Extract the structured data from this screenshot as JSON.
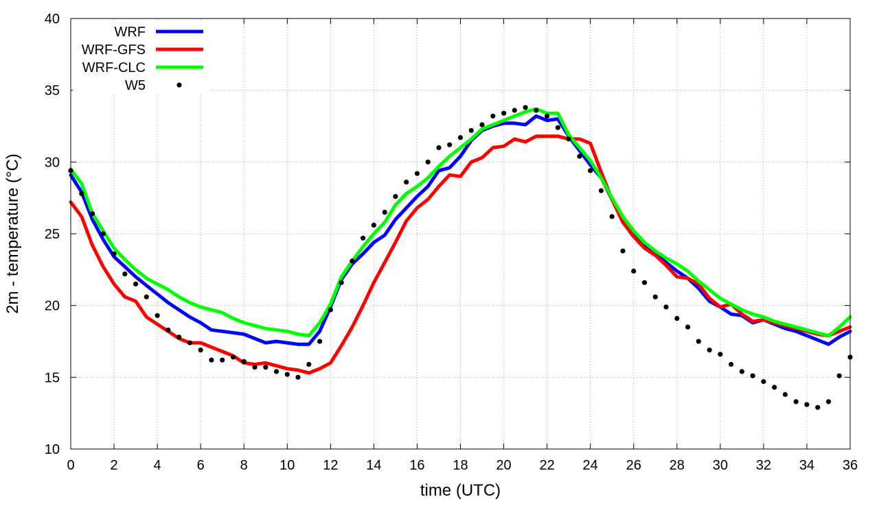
{
  "chart_data": {
    "type": "line",
    "title": "",
    "xlabel": "time (UTC)",
    "ylabel": "2m - temperature (°C)",
    "xlim": [
      0,
      36
    ],
    "ylim": [
      10,
      40
    ],
    "xticks": [
      0,
      2,
      4,
      6,
      8,
      10,
      12,
      14,
      16,
      18,
      20,
      22,
      24,
      26,
      28,
      30,
      32,
      34,
      36
    ],
    "yticks": [
      10,
      15,
      20,
      25,
      30,
      35,
      40
    ],
    "grid": true,
    "legend_position": "top-left",
    "series": [
      {
        "name": "WRF",
        "style": "line",
        "color": "#0000ff",
        "x": [
          0,
          0.5,
          1,
          1.5,
          2,
          2.5,
          3,
          3.5,
          4,
          4.5,
          5,
          5.5,
          6,
          6.5,
          7,
          7.5,
          8,
          8.5,
          9,
          9.5,
          10,
          10.5,
          11,
          11.5,
          12,
          12.5,
          13,
          13.5,
          14,
          14.5,
          15,
          15.5,
          16,
          16.5,
          17,
          17.5,
          18,
          18.5,
          19,
          19.5,
          20,
          20.5,
          21,
          21.5,
          22,
          22.5,
          23,
          23.5,
          24,
          24.5,
          25,
          25.5,
          26,
          26.5,
          27,
          27.5,
          28,
          28.5,
          29,
          29.5,
          30,
          30.5,
          31,
          31.5,
          32,
          32.5,
          33,
          33.5,
          34,
          34.5,
          35,
          35.5,
          36
        ],
        "y": [
          29.1,
          27.9,
          26.0,
          24.6,
          23.4,
          22.7,
          22.0,
          21.4,
          20.8,
          20.2,
          19.7,
          19.2,
          18.8,
          18.3,
          18.2,
          18.1,
          18.0,
          17.7,
          17.4,
          17.5,
          17.4,
          17.3,
          17.3,
          18.2,
          19.9,
          21.8,
          22.9,
          23.6,
          24.4,
          24.9,
          26.0,
          26.8,
          27.6,
          28.3,
          29.4,
          29.6,
          30.4,
          31.5,
          32.2,
          32.5,
          32.7,
          32.7,
          32.6,
          33.2,
          32.9,
          33.0,
          31.8,
          30.8,
          29.8,
          28.9,
          27.4,
          25.9,
          24.9,
          24.2,
          23.6,
          23.0,
          22.4,
          21.9,
          21.2,
          20.3,
          19.9,
          19.4,
          19.3,
          18.8,
          19.0,
          18.7,
          18.4,
          18.2,
          17.9,
          17.6,
          17.3,
          17.8,
          18.2
        ]
      },
      {
        "name": "WRF-GFS",
        "style": "line",
        "color": "#ff0000",
        "x": [
          0,
          0.5,
          1,
          1.5,
          2,
          2.5,
          3,
          3.5,
          4,
          4.5,
          5,
          5.5,
          6,
          6.5,
          7,
          7.5,
          8,
          8.5,
          9,
          9.5,
          10,
          10.5,
          11,
          11.5,
          12,
          12.5,
          13,
          13.5,
          14,
          14.5,
          15,
          15.5,
          16,
          16.5,
          17,
          17.5,
          18,
          18.5,
          19,
          19.5,
          20,
          20.5,
          21,
          21.5,
          22,
          22.5,
          23,
          23.5,
          24,
          24.5,
          25,
          25.5,
          26,
          26.5,
          27,
          27.5,
          28,
          28.5,
          29,
          29.5,
          30,
          30.5,
          31,
          31.5,
          32,
          32.5,
          33,
          33.5,
          34,
          34.5,
          35,
          35.5,
          36
        ],
        "y": [
          27.2,
          26.2,
          24.2,
          22.7,
          21.5,
          20.6,
          20.3,
          19.2,
          18.7,
          18.2,
          17.7,
          17.4,
          17.4,
          17.1,
          16.8,
          16.5,
          16.0,
          15.9,
          16.0,
          15.8,
          15.6,
          15.5,
          15.3,
          15.6,
          16.0,
          17.2,
          18.5,
          20.0,
          21.6,
          23.0,
          24.4,
          25.9,
          26.8,
          27.4,
          28.3,
          29.1,
          29.0,
          30.0,
          30.3,
          31.0,
          31.1,
          31.6,
          31.4,
          31.8,
          31.8,
          31.8,
          31.6,
          31.6,
          31.3,
          29.3,
          27.4,
          25.8,
          24.8,
          24.0,
          23.5,
          22.8,
          22.0,
          21.9,
          21.5,
          20.5,
          19.9,
          20.1,
          19.4,
          18.9,
          19.0,
          18.8,
          18.6,
          18.4,
          18.2,
          18.0,
          17.9,
          18.2,
          18.5
        ]
      },
      {
        "name": "WRF-CLC",
        "style": "line",
        "color": "#00ff00",
        "x": [
          0,
          0.5,
          1,
          1.5,
          2,
          2.5,
          3,
          3.5,
          4,
          4.5,
          5,
          5.5,
          6,
          6.5,
          7,
          7.5,
          8,
          8.5,
          9,
          9.5,
          10,
          10.5,
          11,
          11.5,
          12,
          12.5,
          13,
          13.5,
          14,
          14.5,
          15,
          15.5,
          16,
          16.5,
          17,
          17.5,
          18,
          18.5,
          19,
          19.5,
          20,
          20.5,
          21,
          21.5,
          22,
          22.5,
          23,
          23.5,
          24,
          24.5,
          25,
          25.5,
          26,
          26.5,
          27,
          27.5,
          28,
          28.5,
          29,
          29.5,
          30,
          30.5,
          31,
          31.5,
          32,
          32.5,
          33,
          33.5,
          34,
          34.5,
          35,
          35.5,
          36
        ],
        "y": [
          29.5,
          28.5,
          26.4,
          25.2,
          24.0,
          23.2,
          22.5,
          21.9,
          21.5,
          21.1,
          20.6,
          20.2,
          19.9,
          19.7,
          19.5,
          19.1,
          18.8,
          18.6,
          18.4,
          18.3,
          18.2,
          18.0,
          17.9,
          18.8,
          20.1,
          22.0,
          23.1,
          24.1,
          25.0,
          25.8,
          27.0,
          27.8,
          28.3,
          28.9,
          29.7,
          30.4,
          31.0,
          31.6,
          32.3,
          32.6,
          32.9,
          33.2,
          33.5,
          33.7,
          33.4,
          33.4,
          31.9,
          31.0,
          30.1,
          28.9,
          27.5,
          26.2,
          25.2,
          24.4,
          23.8,
          23.3,
          22.9,
          22.4,
          21.7,
          21.1,
          20.5,
          20.1,
          19.7,
          19.4,
          19.2,
          18.9,
          18.7,
          18.5,
          18.3,
          18.1,
          17.9,
          18.5,
          19.2
        ]
      },
      {
        "name": "W5",
        "style": "points",
        "color": "#000000",
        "x": [
          0,
          0.5,
          1,
          1.5,
          2,
          2.5,
          3,
          3.5,
          4,
          4.5,
          5,
          5.5,
          6,
          6.5,
          7,
          7.5,
          8,
          8.5,
          9,
          9.5,
          10,
          10.5,
          11,
          11.5,
          12,
          12.5,
          13,
          13.5,
          14,
          14.5,
          15,
          15.5,
          16,
          16.5,
          17,
          17.5,
          18,
          18.5,
          19,
          19.5,
          20,
          20.5,
          21,
          21.5,
          22,
          22.5,
          23,
          23.5,
          24,
          24.5,
          25,
          25.5,
          26,
          26.5,
          27,
          27.5,
          28,
          28.5,
          29,
          29.5,
          30,
          30.5,
          31,
          31.5,
          32,
          32.5,
          33,
          33.5,
          34,
          34.5,
          35,
          35.5,
          36
        ],
        "y": [
          29.4,
          27.8,
          26.4,
          25.0,
          23.6,
          22.2,
          21.5,
          20.6,
          19.3,
          18.3,
          17.8,
          17.4,
          16.9,
          16.2,
          16.2,
          16.4,
          16.1,
          15.7,
          15.7,
          15.4,
          15.2,
          15.0,
          15.9,
          17.5,
          19.7,
          21.6,
          23.1,
          24.7,
          25.6,
          26.5,
          27.6,
          28.6,
          29.2,
          30.0,
          31.0,
          31.2,
          31.7,
          32.2,
          32.6,
          33.2,
          33.4,
          33.6,
          33.8,
          33.6,
          33.2,
          32.4,
          31.6,
          30.4,
          29.4,
          28.0,
          26.2,
          23.8,
          22.4,
          21.6,
          20.6,
          19.9,
          19.1,
          18.5,
          17.5,
          16.9,
          16.6,
          15.9,
          15.4,
          15.1,
          14.7,
          14.3,
          13.8,
          13.3,
          13.1,
          12.9,
          13.3,
          15.1,
          16.4
        ]
      }
    ]
  }
}
